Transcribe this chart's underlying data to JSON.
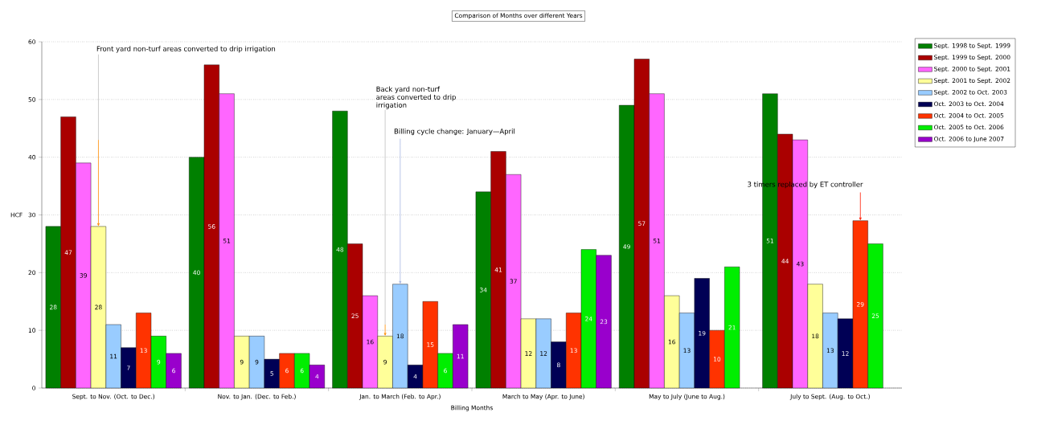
{
  "chart_data": {
    "type": "bar",
    "title": "Comparison of Months over different Years",
    "xlabel": "Billing Months",
    "ylabel": "HCF",
    "categories": [
      "Sept. to Nov. (Oct. to Dec.)",
      "Nov. to Jan. (Dec. to Feb.)",
      "Jan. to March (Feb. to Apr.)",
      "March to May (Apr. to June)",
      "May to July (June to Aug.)",
      "July to Sept. (Aug. to Oct.)"
    ],
    "series": [
      {
        "name": "Sept. 1998 to Sept. 1999",
        "color": "#008000",
        "values": [
          28,
          40,
          48,
          34,
          49,
          51
        ]
      },
      {
        "name": "Sept. 1999 to Sept. 2000",
        "color": "#aa0000",
        "values": [
          47,
          56,
          25,
          41,
          57,
          44
        ]
      },
      {
        "name": "Sept. 2000 to Sept. 2001",
        "color": "#ff66ff",
        "values": [
          39,
          51,
          16,
          37,
          51,
          43
        ]
      },
      {
        "name": "Sept. 2001 to Sept. 2002",
        "color": "#ffff99",
        "values": [
          28,
          9,
          9,
          12,
          16,
          18
        ]
      },
      {
        "name": "Sept. 2002 to Oct. 2003",
        "color": "#99ccff",
        "values": [
          11,
          9,
          18,
          12,
          13,
          13
        ]
      },
      {
        "name": "Oct. 2003 to Oct. 2004",
        "color": "#000055",
        "values": [
          7,
          5,
          4,
          8,
          19,
          12
        ]
      },
      {
        "name": "Oct. 2004 to Oct. 2005",
        "color": "#ff3300",
        "values": [
          13,
          6,
          15,
          13,
          10,
          29
        ]
      },
      {
        "name": "Oct. 2005 to Oct. 2006",
        "color": "#00ee00",
        "values": [
          9,
          6,
          6,
          24,
          21,
          25
        ]
      },
      {
        "name": "Oct. 2006 to June 2007",
        "color": "#9900cc",
        "values": [
          6,
          4,
          11,
          23,
          null,
          null
        ]
      }
    ],
    "ylim": [
      0,
      60
    ],
    "yticks": [
      0,
      10,
      20,
      30,
      40,
      50,
      60
    ],
    "grid": "y",
    "legend": "top right",
    "data_labels": true,
    "annotations": [
      "Front yard non-turf areas converted to drip irrigation",
      "Back yard non-turf areas converted to drip irrigation",
      "Billing cycle change: January—April",
      "3 timers replaced by ET controller"
    ]
  }
}
